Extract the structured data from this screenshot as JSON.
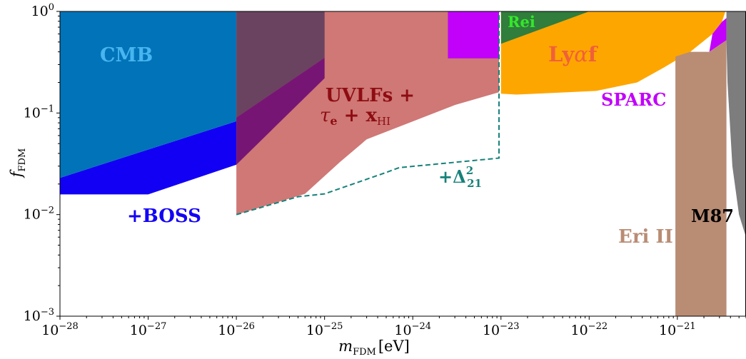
{
  "chart_data": {
    "type": "area",
    "title": "",
    "xlabel": {
      "main": "m",
      "sub": "FDM",
      "unit": "[eV]"
    },
    "ylabel": {
      "main": "f",
      "sub": "FDM"
    },
    "xscale": "log",
    "yscale": "log",
    "xlim": [
      1e-28,
      6e-21
    ],
    "ylim": [
      0.001,
      1
    ],
    "grid": false,
    "legend": "none",
    "x_ticks": [
      {
        "value": 1e-28,
        "base": "10",
        "exp": "−28"
      },
      {
        "value": 1e-27,
        "base": "10",
        "exp": "−27"
      },
      {
        "value": 1e-26,
        "base": "10",
        "exp": "−26"
      },
      {
        "value": 1e-25,
        "base": "10",
        "exp": "−25"
      },
      {
        "value": 1e-24,
        "base": "10",
        "exp": "−24"
      },
      {
        "value": 1e-23,
        "base": "10",
        "exp": "−23"
      },
      {
        "value": 1e-22,
        "base": "10",
        "exp": "−22"
      },
      {
        "value": 1e-21,
        "base": "10",
        "exp": "−21"
      }
    ],
    "y_ticks": [
      {
        "value": 0.001,
        "base": "10",
        "exp": "−3"
      },
      {
        "value": 0.01,
        "base": "10",
        "exp": "−2"
      },
      {
        "value": 0.1,
        "base": "10",
        "exp": "−1"
      },
      {
        "value": 1,
        "base": "10",
        "exp": "0"
      }
    ],
    "regions": [
      {
        "key": "boss",
        "color": "#1200f5",
        "points": [
          [
            1e-28,
            0.023
          ],
          [
            1e-26,
            0.083
          ],
          [
            1e-26,
            0.031
          ],
          [
            1e-27,
            0.0158
          ],
          [
            1e-28,
            0.0158
          ]
        ]
      },
      {
        "key": "cmb",
        "color": "#0173b8",
        "points": [
          [
            1e-28,
            1
          ],
          [
            1e-26,
            1
          ],
          [
            1e-26,
            0.083
          ],
          [
            1e-28,
            0.023
          ]
        ]
      },
      {
        "key": "uvlf",
        "color": "#cf7876",
        "points": [
          [
            1e-26,
            1
          ],
          [
            9.5e-24,
            1
          ],
          [
            9.5e-24,
            0.16
          ],
          [
            3e-24,
            0.12
          ],
          [
            3e-25,
            0.055
          ],
          [
            1.5e-25,
            0.033
          ],
          [
            6e-26,
            0.016
          ],
          [
            1e-26,
            0.01
          ]
        ]
      },
      {
        "key": "uvlf_dark",
        "color": "#6a4360",
        "points": [
          [
            1e-26,
            1
          ],
          [
            1e-25,
            1
          ],
          [
            1e-25,
            0.35
          ],
          [
            1e-26,
            0.09
          ]
        ]
      },
      {
        "key": "uvlf_purple",
        "color": "#771575",
        "points": [
          [
            1e-26,
            0.09
          ],
          [
            1e-25,
            0.35
          ],
          [
            1e-25,
            0.22
          ],
          [
            1e-26,
            0.031
          ]
        ]
      },
      {
        "key": "sparc_top",
        "color": "#c101fa",
        "points": [
          [
            2.5e-24,
            1
          ],
          [
            9.5e-24,
            1
          ],
          [
            9.5e-24,
            0.345
          ],
          [
            2.5e-24,
            0.345
          ]
        ]
      },
      {
        "key": "lyaf",
        "color": "#fea600",
        "points": [
          [
            1e-23,
            0.48
          ],
          [
            1e-23,
            0.155
          ],
          [
            1.5e-23,
            0.152
          ],
          [
            1.2e-22,
            0.165
          ],
          [
            3.5e-22,
            0.2
          ],
          [
            7e-22,
            0.28
          ],
          [
            1.4e-21,
            0.4
          ],
          [
            2.5e-21,
            0.6
          ],
          [
            3.2e-21,
            0.79
          ],
          [
            3.5e-21,
            1
          ],
          [
            1e-23,
            1
          ]
        ]
      },
      {
        "key": "rei",
        "color": "#307d3c",
        "points": [
          [
            1e-23,
            1
          ],
          [
            1e-22,
            1
          ],
          [
            1e-23,
            0.48
          ]
        ]
      },
      {
        "key": "sparc_right",
        "color": "#c101fa",
        "points": [
          [
            3.2e-21,
            0.79
          ],
          [
            3.6e-21,
            0.86
          ],
          [
            3.6e-21,
            0.52
          ],
          [
            2.3e-21,
            0.4
          ],
          [
            2.5e-21,
            0.6
          ]
        ]
      },
      {
        "key": "eri",
        "color": "#b98c74",
        "points": [
          [
            9.5e-22,
            0.001
          ],
          [
            9.5e-22,
            0.36
          ],
          [
            1.4e-21,
            0.4
          ],
          [
            2.3e-21,
            0.4
          ],
          [
            3.6e-21,
            0.52
          ],
          [
            3.6e-21,
            0.001
          ]
        ]
      },
      {
        "key": "m87",
        "color": "#7d7d7d",
        "points": [
          [
            3.6e-21,
            1
          ],
          [
            6e-21,
            1
          ],
          [
            6e-21,
            0.006
          ],
          [
            5e-21,
            0.01
          ],
          [
            4.2e-21,
            0.03
          ],
          [
            3.7e-21,
            0.2
          ],
          [
            3.6e-21,
            0.5
          ]
        ]
      }
    ],
    "dashed_line": {
      "key": "delta21",
      "color": "#16827a",
      "points": [
        [
          1e-26,
          0.01
        ],
        [
          5e-26,
          0.015
        ],
        [
          1e-25,
          0.016
        ],
        [
          5e-25,
          0.026
        ],
        [
          7e-25,
          0.029
        ],
        [
          9.5e-24,
          0.036
        ],
        [
          9.5e-24,
          1
        ]
      ]
    },
    "labels": {
      "cmb": {
        "text": "CMB",
        "color": "#48b5f0"
      },
      "boss": {
        "text": "+BOSS",
        "color": "#1200f5"
      },
      "uvlf_line1": {
        "text": "UVLFs +",
        "color": "#8e0d12"
      },
      "uvlf_tau": {
        "text": "τ",
        "sub": "e",
        "color": "#8e0d12"
      },
      "uvlf_plus": {
        "text": " + ",
        "color": "#8e0d12"
      },
      "uvlf_x": {
        "text": "x",
        "sub": "HI",
        "color": "#8e0d12"
      },
      "delta": {
        "text": "+Δ",
        "sup": "2",
        "sub": "21",
        "color": "#16827a"
      },
      "rei": {
        "text": "Rei",
        "color": "#34e82a"
      },
      "lyaf": {
        "prefix": "Ly",
        "greek": "α",
        "suffix": "f",
        "color": "#f0603a"
      },
      "sparc": {
        "text": "SPARC",
        "color": "#c101fa"
      },
      "eri": {
        "text": "Eri II",
        "color": "#b98c74"
      },
      "m87": {
        "text": "M87",
        "color": "#000000"
      }
    }
  }
}
